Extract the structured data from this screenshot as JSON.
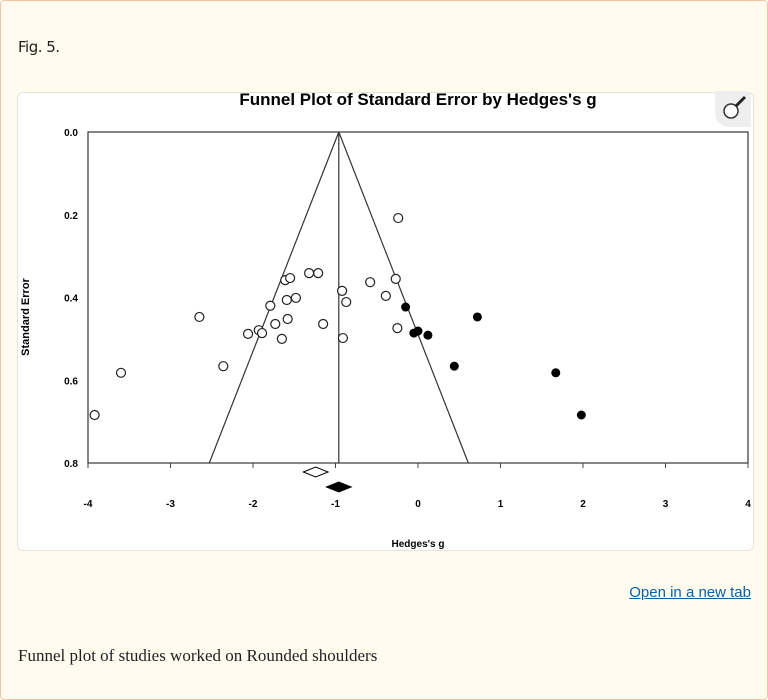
{
  "figure": {
    "label": "Fig. 5.",
    "open_link": "Open in a new tab",
    "caption": "Funnel plot of studies worked on Rounded shoulders",
    "zoom_icon": "magnifier-icon"
  },
  "chart_data": {
    "type": "scatter",
    "title": "Funnel Plot of Standard Error by Hedges's g",
    "xlabel": "Hedges's g",
    "ylabel": "Standard Error",
    "xlim": [
      -4,
      4
    ],
    "ylim": [
      0.0,
      0.8
    ],
    "y_inverted": true,
    "xticks": [
      -4,
      -3,
      -2,
      -1,
      0,
      1,
      2,
      3,
      4
    ],
    "yticks": [
      "0.0",
      "0.2",
      "0.4",
      "0.6",
      "0.8"
    ],
    "grid": false,
    "observed_studies": [
      [
        -0.24,
        0.208
      ],
      [
        -3.92,
        0.684
      ],
      [
        -3.6,
        0.582
      ],
      [
        -2.65,
        0.447
      ],
      [
        -2.36,
        0.566
      ],
      [
        -2.06,
        0.488
      ],
      [
        -1.93,
        0.479
      ],
      [
        -1.89,
        0.486
      ],
      [
        -1.79,
        0.42
      ],
      [
        -1.73,
        0.464
      ],
      [
        -1.65,
        0.5
      ],
      [
        -1.59,
        0.406
      ],
      [
        -1.58,
        0.452
      ],
      [
        -1.61,
        0.358
      ],
      [
        -1.55,
        0.353
      ],
      [
        -1.48,
        0.401
      ],
      [
        -1.32,
        0.341
      ],
      [
        -1.21,
        0.341
      ],
      [
        -1.15,
        0.464
      ],
      [
        -0.92,
        0.384
      ],
      [
        -0.87,
        0.411
      ],
      [
        -0.91,
        0.498
      ],
      [
        -0.58,
        0.363
      ],
      [
        -0.39,
        0.396
      ],
      [
        -0.27,
        0.355
      ],
      [
        -0.25,
        0.474
      ]
    ],
    "imputed_studies": [
      [
        -0.15,
        0.423
      ],
      [
        -0.05,
        0.486
      ],
      [
        0.0,
        0.481
      ],
      [
        0.12,
        0.491
      ],
      [
        0.44,
        0.566
      ],
      [
        0.72,
        0.447
      ],
      [
        1.67,
        0.582
      ],
      [
        1.98,
        0.684
      ]
    ],
    "observed_summary": {
      "g": -1.24,
      "ci_half_width": 0.15
    },
    "adjusted_summary": {
      "g": -0.96,
      "ci_half_width": 0.15
    },
    "funnel_center": -0.96,
    "funnel_bottom": [
      -2.53,
      0.61
    ]
  }
}
